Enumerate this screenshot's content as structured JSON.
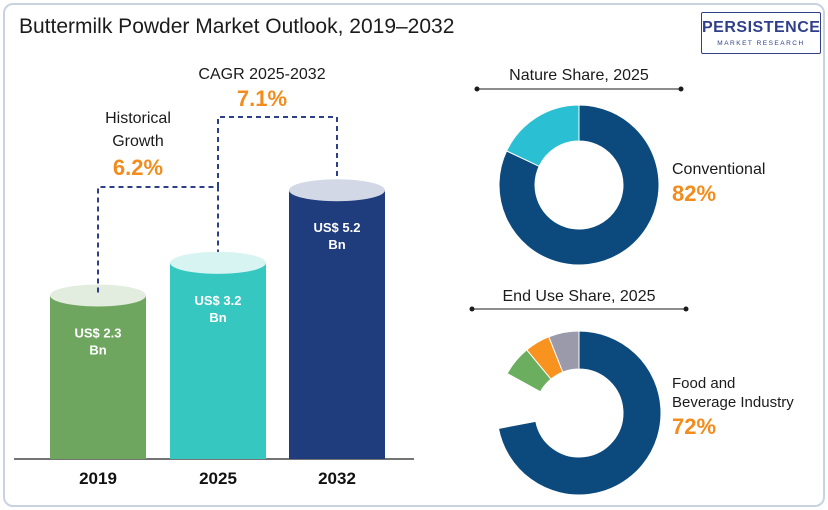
{
  "header": {
    "title": "Buttermilk Powder Market Outlook, 2019–2032",
    "logo_main": "PERSISTENCE",
    "logo_sub": "MARKET RESEARCH"
  },
  "colors": {
    "bar_2019": "#6fa65f",
    "bar_2025": "#35c7c0",
    "bar_2032": "#1f3c7c",
    "accent_orange": "#f28c1c",
    "donut_primary": "#0c4a7e",
    "donut_secondary": "#2bbfd3",
    "enduse_green": "#6cae5f",
    "enduse_orange": "#f7931e",
    "enduse_gray": "#9a9aaa"
  },
  "chart_data": [
    {
      "type": "bar",
      "categories": [
        "2019",
        "2025",
        "2032"
      ],
      "values": [
        2.3,
        3.2,
        5.2
      ],
      "value_labels": [
        "US$ 2.3 Bn",
        "US$ 3.2 Bn",
        "US$ 5.2 Bn"
      ],
      "annotations": [
        {
          "label": "Historical Growth",
          "value": "6.2%"
        },
        {
          "label": "CAGR 2025-2032",
          "value": "7.1%"
        }
      ]
    },
    {
      "type": "pie",
      "title": "Nature Share, 2025",
      "slices": [
        {
          "label": "Conventional",
          "value": 82
        },
        {
          "label": "",
          "value": 18
        }
      ],
      "highlight_label": "Conventional",
      "highlight_value": "82%"
    },
    {
      "type": "pie",
      "title": "End Use Share, 2025",
      "slices": [
        {
          "label": "Food and Beverage Industry",
          "value": 72
        },
        {
          "label": "",
          "value": 11
        },
        {
          "label": "",
          "value": 6
        },
        {
          "label": "",
          "value": 5
        },
        {
          "label": "",
          "value": 6
        }
      ],
      "highlight_label": "Food and Beverage Industry",
      "highlight_value": "72%"
    }
  ]
}
